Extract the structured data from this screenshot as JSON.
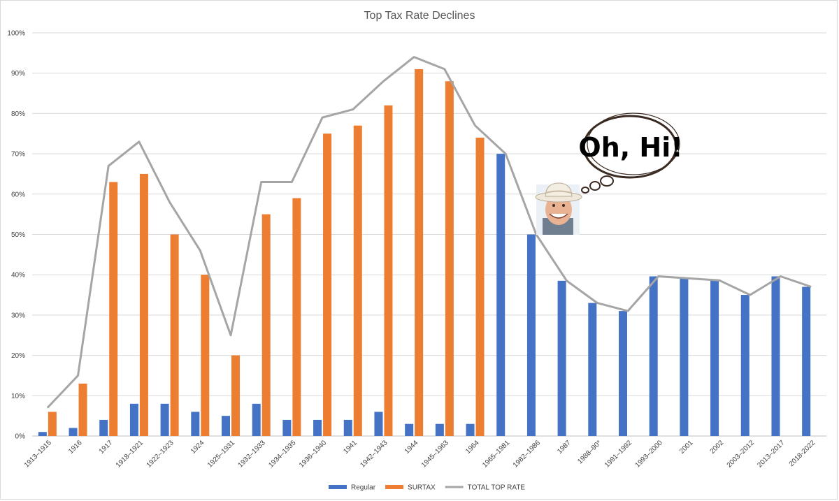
{
  "chart_data": {
    "type": "bar",
    "title": "Top Tax Rate  Declines",
    "xlabel": "",
    "ylabel": "",
    "ylim": [
      0,
      100
    ],
    "y_ticks": [
      "0%",
      "10%",
      "20%",
      "30%",
      "40%",
      "50%",
      "60%",
      "70%",
      "80%",
      "90%",
      "100%"
    ],
    "grid": "horizontal",
    "legend_position": "bottom",
    "categories": [
      "1913–1915",
      "1916",
      "1917",
      "1918–1921",
      "1922–1923",
      "1924",
      "1925–1931",
      "1932–1933",
      "1934–1935",
      "1936–1940",
      "1941",
      "1942–1943",
      "1944",
      "1945–1963",
      "1964",
      "1965–1981",
      "1982–1986",
      "1987",
      "1988–90*",
      "1991–1992",
      "1993–2000",
      "2001",
      "2002",
      "2003–2012",
      "2013–2017",
      "2018-2022"
    ],
    "series": [
      {
        "name": "Regular",
        "kind": "bar",
        "color": "#4472C4",
        "values": [
          1,
          2,
          4,
          8,
          8,
          6,
          5,
          8,
          4,
          4,
          4,
          6,
          3,
          3,
          3,
          70,
          50,
          38.5,
          33,
          31,
          39.6,
          39.1,
          38.6,
          35,
          39.6,
          37
        ]
      },
      {
        "name": "SURTAX",
        "kind": "bar",
        "color": "#ED7D31",
        "values": [
          6,
          13,
          63,
          65,
          50,
          40,
          20,
          55,
          59,
          75,
          77,
          82,
          91,
          88,
          74,
          0,
          0,
          0,
          0,
          0,
          0,
          0,
          0,
          0,
          0,
          0
        ]
      },
      {
        "name": "TOTAL TOP RATE",
        "kind": "line",
        "color": "#A5A5A5",
        "values": [
          7,
          15,
          67,
          73,
          58,
          46,
          25,
          63,
          63,
          79,
          81,
          88,
          94,
          91,
          77,
          70,
          50,
          38.5,
          33,
          31,
          39.6,
          39.1,
          38.6,
          35,
          39.6,
          37
        ]
      }
    ]
  },
  "annotation": {
    "bubble_text": "Oh, Hi!",
    "portrait_icon": "cowboy-hat-portrait-icon"
  }
}
